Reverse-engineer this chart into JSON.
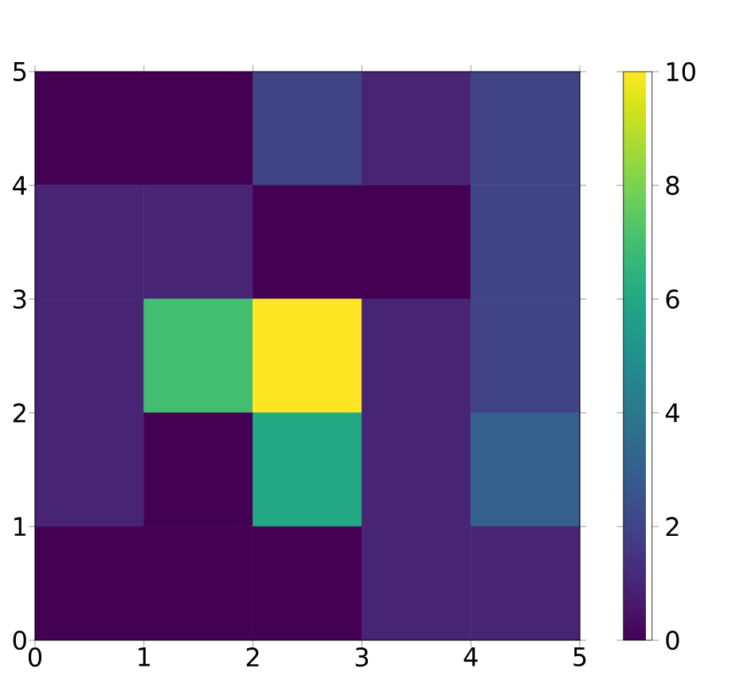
{
  "chart_data": {
    "type": "heatmap",
    "xlim": [
      0,
      5
    ],
    "ylim": [
      0,
      5
    ],
    "xticks": [
      0,
      1,
      2,
      3,
      4,
      5
    ],
    "yticks": [
      0,
      1,
      2,
      3,
      4,
      5
    ],
    "cells": [
      [
        0,
        0,
        2,
        1,
        2
      ],
      [
        1,
        1,
        0,
        0,
        2
      ],
      [
        1,
        7,
        10,
        1,
        2
      ],
      [
        1,
        0,
        6,
        1,
        3
      ],
      [
        0,
        0,
        0,
        1,
        1
      ]
    ],
    "clim": [
      0,
      10
    ],
    "cticks": [
      0,
      2,
      4,
      6,
      8,
      10
    ]
  }
}
